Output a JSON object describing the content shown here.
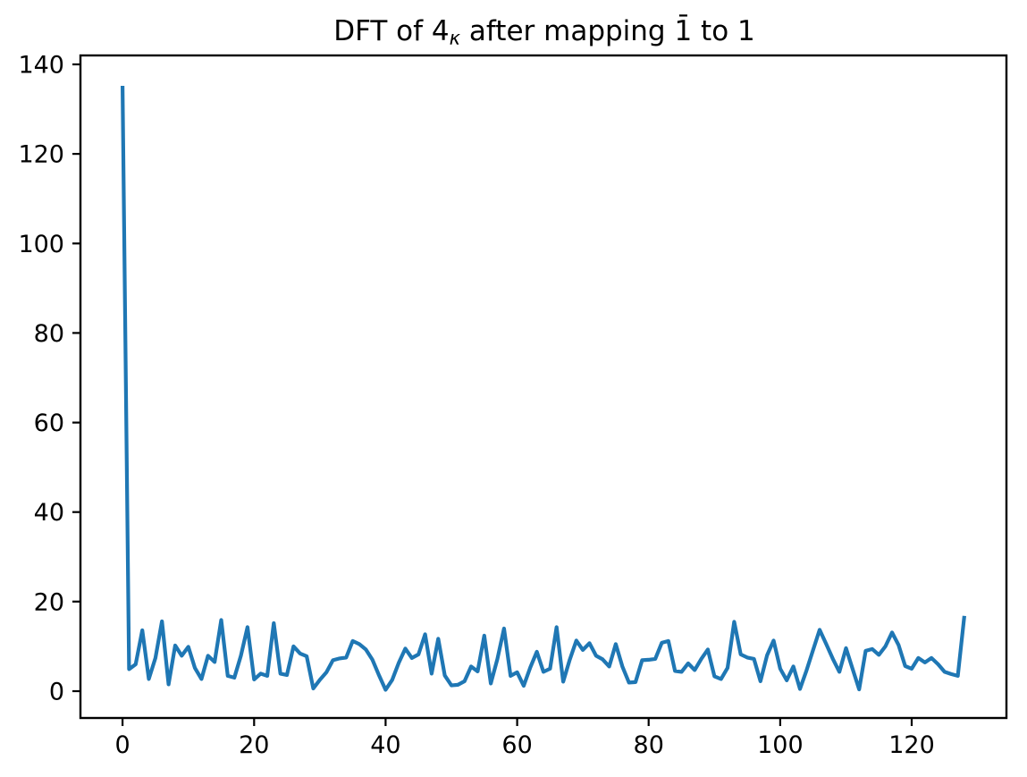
{
  "figure": {
    "background": "#ffffff",
    "title": {
      "prefix": "DFT of 4",
      "subscript": "κ",
      "suffix": " after mapping 1̄ to 1"
    }
  },
  "chart_data": {
    "type": "line",
    "title": "DFT of 4κ after mapping 1̄ to 1",
    "xlabel": "",
    "ylabel": "",
    "legend": null,
    "grid": false,
    "line_color": "#1f77b4",
    "axis_color": "#000000",
    "x_start": 0,
    "x_step": 1,
    "x_ticks": [
      0,
      20,
      40,
      60,
      80,
      100,
      120
    ],
    "y_ticks": [
      0,
      20,
      40,
      60,
      80,
      100,
      120,
      140
    ],
    "xlim": [
      -6.4,
      134.4
    ],
    "ylim": [
      -6.0,
      142.0
    ],
    "values": [
      135.2,
      4.9,
      6.0,
      13.6,
      2.7,
      7.4,
      15.6,
      1.5,
      10.2,
      7.9,
      9.9,
      5.2,
      2.7,
      7.9,
      6.5,
      15.9,
      3.4,
      3.0,
      7.9,
      14.3,
      2.6,
      3.9,
      3.4,
      15.2,
      3.9,
      3.6,
      10.0,
      8.4,
      7.8,
      0.6,
      2.5,
      4.2,
      6.9,
      7.3,
      7.5,
      11.2,
      10.5,
      9.3,
      7.0,
      3.5,
      0.3,
      2.5,
      6.3,
      9.5,
      7.4,
      8.2,
      12.7,
      3.9,
      11.7,
      3.5,
      1.3,
      1.4,
      2.2,
      5.5,
      4.4,
      12.4,
      1.7,
      7.2,
      14.0,
      3.4,
      4.2,
      1.2,
      5.3,
      8.8,
      4.3,
      5.0,
      14.3,
      2.1,
      7.0,
      11.3,
      9.2,
      10.7,
      7.9,
      7.1,
      5.5,
      10.5,
      5.5,
      1.9,
      2.0,
      6.9,
      7.0,
      7.2,
      10.8,
      11.2,
      4.5,
      4.3,
      6.2,
      4.7,
      7.2,
      9.3,
      3.3,
      2.7,
      5.2,
      15.5,
      8.2,
      7.5,
      7.2,
      2.2,
      8.0,
      11.3,
      5.0,
      2.4,
      5.5,
      0.5,
      4.6,
      9.2,
      13.7,
      10.5,
      7.2,
      4.3,
      9.6,
      5.0,
      0.4,
      9.0,
      9.4,
      8.1,
      10.0,
      13.1,
      10.3,
      5.6,
      5.0,
      7.4,
      6.4,
      7.4,
      6.0,
      4.3,
      3.8,
      3.4,
      16.8
    ]
  }
}
